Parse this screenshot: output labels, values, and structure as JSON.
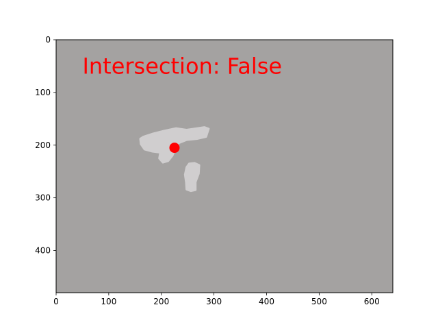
{
  "chart_data": {
    "type": "scatter",
    "title": "",
    "xlabel": "",
    "ylabel": "",
    "xlim": [
      0,
      640
    ],
    "ylim": [
      480,
      0
    ],
    "y_inverted": true,
    "grid": false,
    "x_ticks": [
      0,
      100,
      200,
      300,
      400,
      500,
      600
    ],
    "y_ticks": [
      0,
      100,
      200,
      300,
      400
    ],
    "annotation": {
      "text": "Intersection: False",
      "x": 50,
      "y": 50,
      "color": "#ff0000"
    },
    "image": {
      "background_color": "#a4a2a1",
      "region_color": "#d0cecf",
      "regions": [
        {
          "name": "upper-blob",
          "outline": [
            [
              166,
              184
            ],
            [
              185,
              178
            ],
            [
              205,
              173
            ],
            [
              228,
              168
            ],
            [
              248,
              171
            ],
            [
              268,
              168
            ],
            [
              282,
              166
            ],
            [
              290,
              169
            ],
            [
              285,
              184
            ],
            [
              268,
              188
            ],
            [
              248,
              190
            ],
            [
              233,
              196
            ],
            [
              226,
              208
            ],
            [
              221,
              220
            ],
            [
              213,
              230
            ],
            [
              203,
              233
            ],
            [
              196,
              225
            ],
            [
              198,
              214
            ],
            [
              183,
              212
            ],
            [
              168,
              208
            ],
            [
              161,
              198
            ],
            [
              160,
              188
            ]
          ]
        },
        {
          "name": "lower-blob",
          "outline": [
            [
              248,
              242
            ],
            [
              253,
              235
            ],
            [
              263,
              234
            ],
            [
              272,
              238
            ],
            [
              271,
              254
            ],
            [
              265,
              270
            ],
            [
              265,
              285
            ],
            [
              256,
              287
            ],
            [
              248,
              284
            ],
            [
              247,
              270
            ],
            [
              245,
              256
            ]
          ]
        }
      ]
    },
    "series": [
      {
        "x": [
          225
        ],
        "y": [
          205
        ],
        "color": "#ff0000"
      }
    ]
  }
}
